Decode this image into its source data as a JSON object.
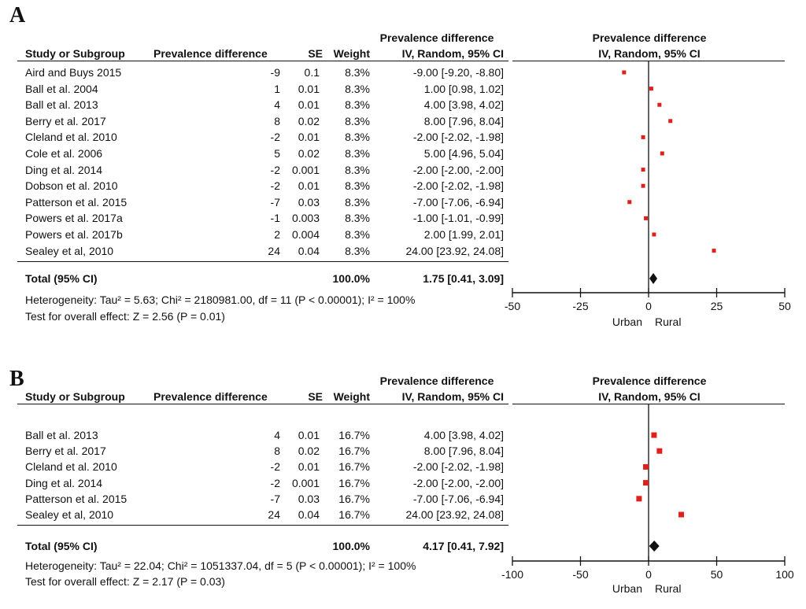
{
  "columns": {
    "study": "Study or Subgroup",
    "pd": "Prevalence difference",
    "se": "SE",
    "weight": "Weight",
    "ci_top": "Prevalence difference",
    "ci_bottom": "IV, Random, 95% CI",
    "plot_top": "Prevalence difference",
    "plot_bottom": "IV, Random, 95% CI"
  },
  "colors": {
    "marker": "#e0201b",
    "diamond": "#111111",
    "axis": "#111111"
  },
  "chart_data": [
    {
      "type": "forest",
      "panel": "A",
      "studies": [
        {
          "name": "Aird and Buys 2015",
          "pd": "-9",
          "se": "0.1",
          "weight": "8.3%",
          "ci": "-9.00 [-9.20, -8.80]",
          "est": -9.0
        },
        {
          "name": "Ball et al. 2004",
          "pd": "1",
          "se": "0.01",
          "weight": "8.3%",
          "ci": "1.00 [0.98, 1.02]",
          "est": 1.0
        },
        {
          "name": "Ball et al. 2013",
          "pd": "4",
          "se": "0.01",
          "weight": "8.3%",
          "ci": "4.00 [3.98, 4.02]",
          "est": 4.0
        },
        {
          "name": "Berry et al. 2017",
          "pd": "8",
          "se": "0.02",
          "weight": "8.3%",
          "ci": "8.00 [7.96, 8.04]",
          "est": 8.0
        },
        {
          "name": "Cleland et al. 2010",
          "pd": "-2",
          "se": "0.01",
          "weight": "8.3%",
          "ci": "-2.00 [-2.02, -1.98]",
          "est": -2.0
        },
        {
          "name": "Cole et al. 2006",
          "pd": "5",
          "se": "0.02",
          "weight": "8.3%",
          "ci": "5.00 [4.96, 5.04]",
          "est": 5.0
        },
        {
          "name": "Ding et al. 2014",
          "pd": "-2",
          "se": "0.001",
          "weight": "8.3%",
          "ci": "-2.00 [-2.00, -2.00]",
          "est": -2.0
        },
        {
          "name": "Dobson et al. 2010",
          "pd": "-2",
          "se": "0.01",
          "weight": "8.3%",
          "ci": "-2.00 [-2.02, -1.98]",
          "est": -2.0
        },
        {
          "name": "Patterson et al. 2015",
          "pd": "-7",
          "se": "0.03",
          "weight": "8.3%",
          "ci": "-7.00 [-7.06, -6.94]",
          "est": -7.0
        },
        {
          "name": "Powers et al. 2017a",
          "pd": "-1",
          "se": "0.003",
          "weight": "8.3%",
          "ci": "-1.00 [-1.01, -0.99]",
          "est": -1.0
        },
        {
          "name": "Powers et al. 2017b",
          "pd": "2",
          "se": "0.004",
          "weight": "8.3%",
          "ci": "2.00 [1.99, 2.01]",
          "est": 2.0
        },
        {
          "name": "Sealey et al, 2010",
          "pd": "24",
          "se": "0.04",
          "weight": "8.3%",
          "ci": "24.00 [23.92, 24.08]",
          "est": 24.0
        }
      ],
      "total": {
        "label": "Total (95% CI)",
        "weight": "100.0%",
        "ci": "1.75 [0.41, 3.09]",
        "est": 1.75,
        "lo": 0.41,
        "hi": 3.09
      },
      "heterogeneity": "Heterogeneity: Tau² = 5.63; Chi² = 2180981.00, df = 11 (P < 0.00001); I² = 100%",
      "overall": "Test for overall effect: Z = 2.56 (P = 0.01)",
      "xlim": [
        -50,
        50
      ],
      "ticks": [
        -50,
        -25,
        0,
        25,
        50
      ],
      "tick_labels": [
        "-50",
        "-25",
        "0",
        "25",
        "50"
      ],
      "favours_left": "Urban",
      "favours_right": "Rural"
    },
    {
      "type": "forest",
      "panel": "B",
      "studies": [
        {
          "name": "Ball et al. 2013",
          "pd": "4",
          "se": "0.01",
          "weight": "16.7%",
          "ci": "4.00 [3.98, 4.02]",
          "est": 4.0
        },
        {
          "name": "Berry et al. 2017",
          "pd": "8",
          "se": "0.02",
          "weight": "16.7%",
          "ci": "8.00 [7.96, 8.04]",
          "est": 8.0
        },
        {
          "name": "Cleland et al. 2010",
          "pd": "-2",
          "se": "0.01",
          "weight": "16.7%",
          "ci": "-2.00 [-2.02, -1.98]",
          "est": -2.0
        },
        {
          "name": "Ding et al. 2014",
          "pd": "-2",
          "se": "0.001",
          "weight": "16.7%",
          "ci": "-2.00 [-2.00, -2.00]",
          "est": -2.0
        },
        {
          "name": "Patterson et al. 2015",
          "pd": "-7",
          "se": "0.03",
          "weight": "16.7%",
          "ci": "-7.00 [-7.06, -6.94]",
          "est": -7.0
        },
        {
          "name": "Sealey et al, 2010",
          "pd": "24",
          "se": "0.04",
          "weight": "16.7%",
          "ci": "24.00 [23.92, 24.08]",
          "est": 24.0
        }
      ],
      "total": {
        "label": "Total (95% CI)",
        "weight": "100.0%",
        "ci": "4.17 [0.41, 7.92]",
        "est": 4.17,
        "lo": 0.41,
        "hi": 7.92
      },
      "heterogeneity": "Heterogeneity: Tau² = 22.04; Chi² = 1051337.04, df = 5 (P < 0.00001); I² = 100%",
      "overall": "Test for overall effect: Z = 2.17 (P = 0.03)",
      "xlim": [
        -100,
        100
      ],
      "ticks": [
        -100,
        -50,
        0,
        50,
        100
      ],
      "tick_labels": [
        "-100",
        "-50",
        "0",
        "50",
        "100"
      ],
      "favours_left": "Urban",
      "favours_right": "Rural"
    }
  ]
}
